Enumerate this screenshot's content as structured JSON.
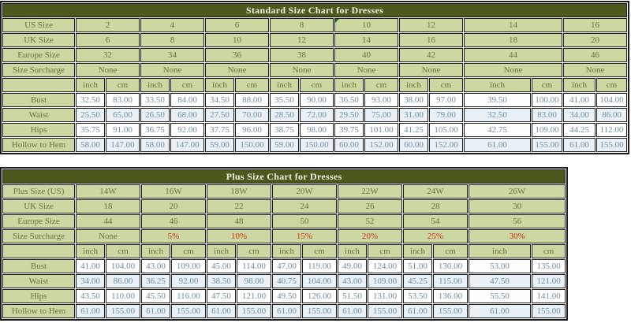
{
  "colors": {
    "title_bg": "#4c591d",
    "title_text": "#f2f1e0",
    "header_green": "#ccd8a2",
    "header_text": "#67743c",
    "value_text": "#6f8ea1",
    "row_white": "#fefefe",
    "row_alt": "#e9f0f6",
    "surcharge_red": "#cf2f1b",
    "grid_border": "#1c1c1c",
    "marker_green": "#26761f"
  },
  "standard_chart": {
    "title": "Standard Size Chart for Dresses",
    "unit_labels": [
      "inch",
      "cm"
    ],
    "attribute_rows": [
      {
        "label": "US Size",
        "values": [
          "2",
          "4",
          "6",
          "8",
          "10",
          "12",
          "14",
          "16"
        ],
        "marker_index": 4
      },
      {
        "label": "UK Size",
        "values": [
          "6",
          "8",
          "10",
          "12",
          "14",
          "16",
          "18",
          "20"
        ]
      },
      {
        "label": "Europe Size",
        "values": [
          "32",
          "34",
          "36",
          "38",
          "40",
          "42",
          "44",
          "46"
        ]
      },
      {
        "label": "Size Surcharge",
        "values": [
          "None",
          "None",
          "None",
          "None",
          "None",
          "None",
          "None",
          "None"
        ]
      }
    ],
    "measurement_rows": [
      {
        "label": "Bust",
        "inch": [
          "32.50",
          "33.50",
          "34.50",
          "35.50",
          "36.50",
          "38.00",
          "39.50",
          "41.00"
        ],
        "cm": [
          "83.00",
          "84.00",
          "88.00",
          "90.00",
          "93.00",
          "97.00",
          "100.00",
          "104.00"
        ]
      },
      {
        "label": "Waist",
        "inch": [
          "25.50",
          "26.50",
          "27.50",
          "28.50",
          "29.50",
          "31.00",
          "32.50",
          "34.00"
        ],
        "cm": [
          "65.00",
          "68.00",
          "70.00",
          "72.00",
          "75.00",
          "79.00",
          "83.00",
          "86.00"
        ]
      },
      {
        "label": "Hips",
        "inch": [
          "35.75",
          "36.75",
          "37.75",
          "38.75",
          "39.75",
          "41.25",
          "42.75",
          "44.25"
        ],
        "cm": [
          "91.00",
          "92.00",
          "96.00",
          "98.00",
          "101.00",
          "105.00",
          "109.00",
          "112.00"
        ]
      },
      {
        "label": "Hollow to Hem",
        "inch": [
          "58.00",
          "58.00",
          "59.00",
          "59.00",
          "60.00",
          "60.00",
          "61.00",
          "61.00"
        ],
        "cm": [
          "147.00",
          "147.00",
          "150.00",
          "150.00",
          "152.00",
          "152.00",
          "155.00",
          "155.00"
        ]
      }
    ]
  },
  "plus_chart": {
    "title": "Plus Size Chart for Dresses",
    "unit_labels": [
      "inch",
      "cm"
    ],
    "attribute_rows": [
      {
        "label": "Plus Size (US)",
        "values": [
          "14W",
          "16W",
          "18W",
          "20W",
          "22W",
          "24W",
          "26W"
        ]
      },
      {
        "label": "UK Size",
        "values": [
          "18",
          "20",
          "22",
          "24",
          "26",
          "28",
          "30"
        ]
      },
      {
        "label": "Europe Size",
        "values": [
          "44",
          "46",
          "48",
          "50",
          "52",
          "54",
          "56"
        ]
      },
      {
        "label": "Size Surcharge",
        "values": [
          "None",
          "5%",
          "10%",
          "15%",
          "20%",
          "25%",
          "30%"
        ],
        "red_flags": [
          false,
          true,
          true,
          true,
          true,
          true,
          true
        ]
      }
    ],
    "measurement_rows": [
      {
        "label": "Bust",
        "inch": [
          "41.00",
          "43.00",
          "45.00",
          "47.00",
          "49.00",
          "51.00",
          "53.00"
        ],
        "cm": [
          "104.00",
          "109.00",
          "114.00",
          "119.00",
          "124.00",
          "130.00",
          "135.00"
        ]
      },
      {
        "label": "Waist",
        "inch": [
          "34.00",
          "36.25",
          "38.50",
          "40.75",
          "43.00",
          "45.25",
          "47.50"
        ],
        "cm": [
          "86.00",
          "92.00",
          "98.00",
          "104.00",
          "109.00",
          "115.00",
          "121.00"
        ]
      },
      {
        "label": "Hips",
        "inch": [
          "43.50",
          "45.50",
          "47.50",
          "49.50",
          "51.50",
          "53.50",
          "55.50"
        ],
        "cm": [
          "110.00",
          "116.00",
          "121.00",
          "126.00",
          "131.00",
          "136.00",
          "141.00"
        ]
      },
      {
        "label": "Hollow to Hem",
        "inch": [
          "61.00",
          "61.00",
          "61.00",
          "61.00",
          "61.00",
          "61.00",
          "61.00"
        ],
        "cm": [
          "155.00",
          "155.00",
          "155.00",
          "155.00",
          "155.00",
          "155.00",
          "155.00"
        ]
      }
    ]
  }
}
